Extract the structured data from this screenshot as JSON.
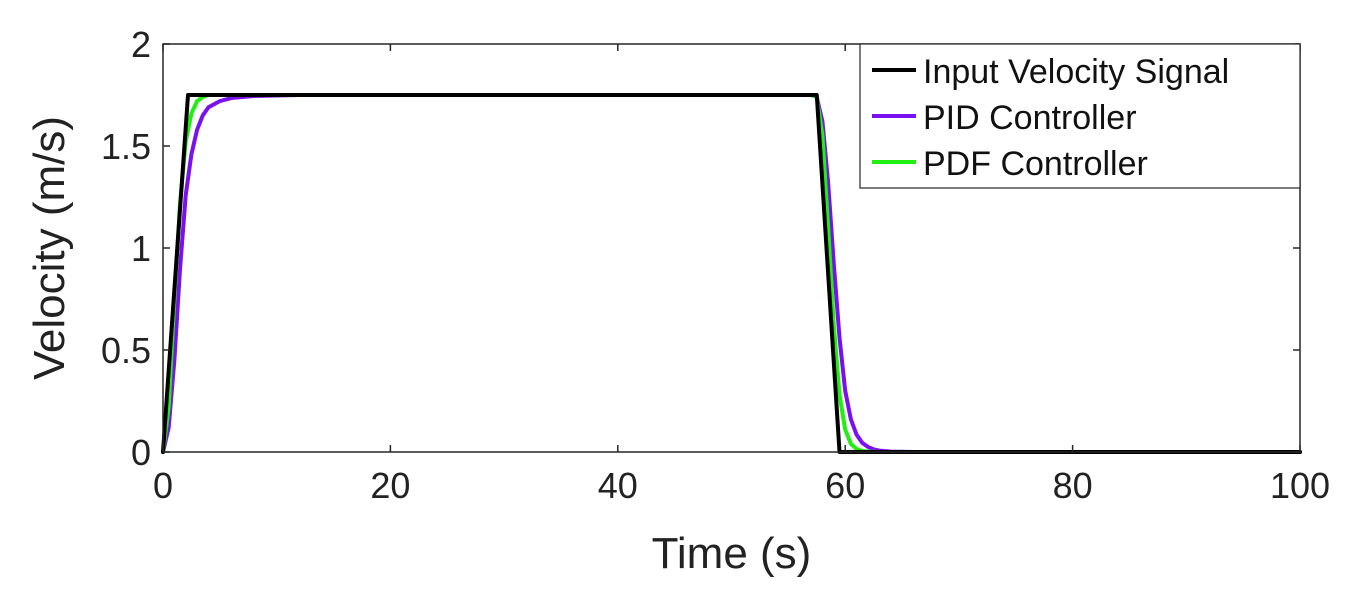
{
  "chart_data": {
    "type": "line",
    "title": "",
    "xlabel": "Time (s)",
    "ylabel": "Velocity (m/s)",
    "xlim": [
      0,
      100
    ],
    "ylim": [
      0,
      2
    ],
    "x_ticks": [
      0,
      20,
      40,
      60,
      80,
      100
    ],
    "y_ticks": [
      0,
      0.5,
      1,
      1.5,
      2
    ],
    "x_tick_labels": [
      "0",
      "20",
      "40",
      "60",
      "80",
      "100"
    ],
    "y_tick_labels": [
      "0",
      "0.5",
      "1",
      "1.5",
      "2"
    ],
    "grid": false,
    "legend_position": "top-right",
    "series": [
      {
        "name": "Input Velocity Signal",
        "color": "#000000",
        "x": [
          0,
          2.2,
          57.5,
          59.5,
          100
        ],
        "y": [
          0,
          1.75,
          1.75,
          0,
          0
        ]
      },
      {
        "name": "PID Controller",
        "color": "#7a10f0",
        "x": [
          0,
          0.5,
          1.0,
          1.5,
          2.0,
          2.5,
          3.0,
          3.5,
          4.0,
          5.0,
          6.0,
          8.0,
          12,
          57.0,
          57.5,
          58.0,
          58.5,
          59.0,
          59.5,
          60.0,
          60.5,
          61.0,
          61.5,
          62.0,
          62.5,
          63.0,
          64.0,
          65.0,
          66.0,
          100
        ],
        "y": [
          0,
          0.12,
          0.45,
          0.9,
          1.26,
          1.46,
          1.58,
          1.65,
          1.69,
          1.72,
          1.735,
          1.745,
          1.75,
          1.75,
          1.74,
          1.62,
          1.32,
          0.92,
          0.56,
          0.3,
          0.16,
          0.085,
          0.045,
          0.025,
          0.013,
          0.007,
          0.002,
          0.001,
          0,
          0
        ]
      },
      {
        "name": "PDF Controller",
        "color": "#22ee11",
        "x": [
          0,
          0.5,
          1.0,
          1.5,
          2.0,
          2.5,
          3.0,
          3.5,
          4.0,
          5.0,
          57.0,
          57.5,
          58.0,
          58.5,
          59.0,
          59.5,
          60.0,
          60.5,
          61.0,
          61.5,
          62.0,
          63.0,
          100
        ],
        "y": [
          0,
          0.22,
          0.75,
          1.22,
          1.52,
          1.66,
          1.72,
          1.74,
          1.75,
          1.75,
          1.75,
          1.74,
          1.55,
          1.1,
          0.62,
          0.28,
          0.11,
          0.04,
          0.015,
          0.005,
          0.002,
          0,
          0
        ]
      }
    ]
  }
}
